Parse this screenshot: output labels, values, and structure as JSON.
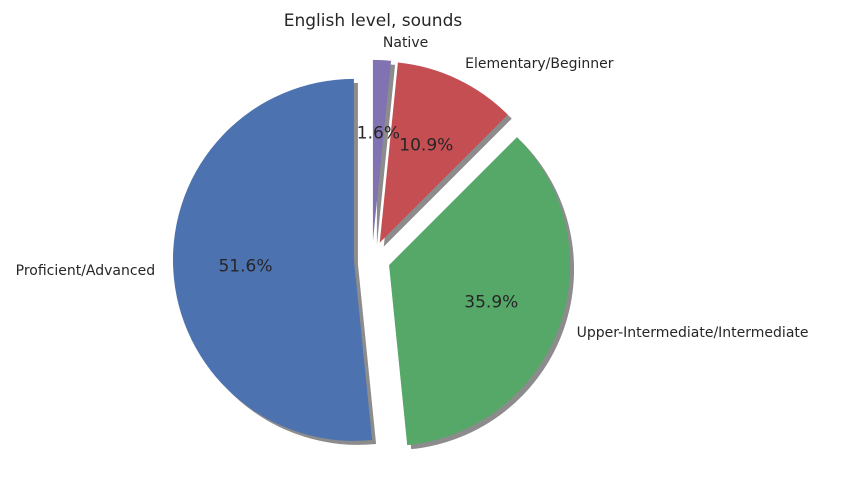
{
  "chart_data": {
    "type": "pie",
    "title": "English level, sounds",
    "slices": [
      {
        "label": "Native",
        "value": 1.6,
        "pct_label": "1.6%",
        "color": "#8172b2",
        "explode": 0.1
      },
      {
        "label": "Elementary/Beginner",
        "value": 10.9,
        "pct_label": "10.9%",
        "color": "#c44e52",
        "explode": 0.1
      },
      {
        "label": "Upper-Intermediate/Intermediate",
        "value": 35.9,
        "pct_label": "35.9%",
        "color": "#55a868",
        "explode": 0.1
      },
      {
        "label": "Proficient/Advanced",
        "value": 51.6,
        "pct_label": "51.6%",
        "color": "#4c72b0",
        "explode": 0.1
      }
    ],
    "start_angle_deg": 90,
    "direction": "clockwise",
    "shadow": true,
    "shadow_color": "#8c8c8c"
  }
}
